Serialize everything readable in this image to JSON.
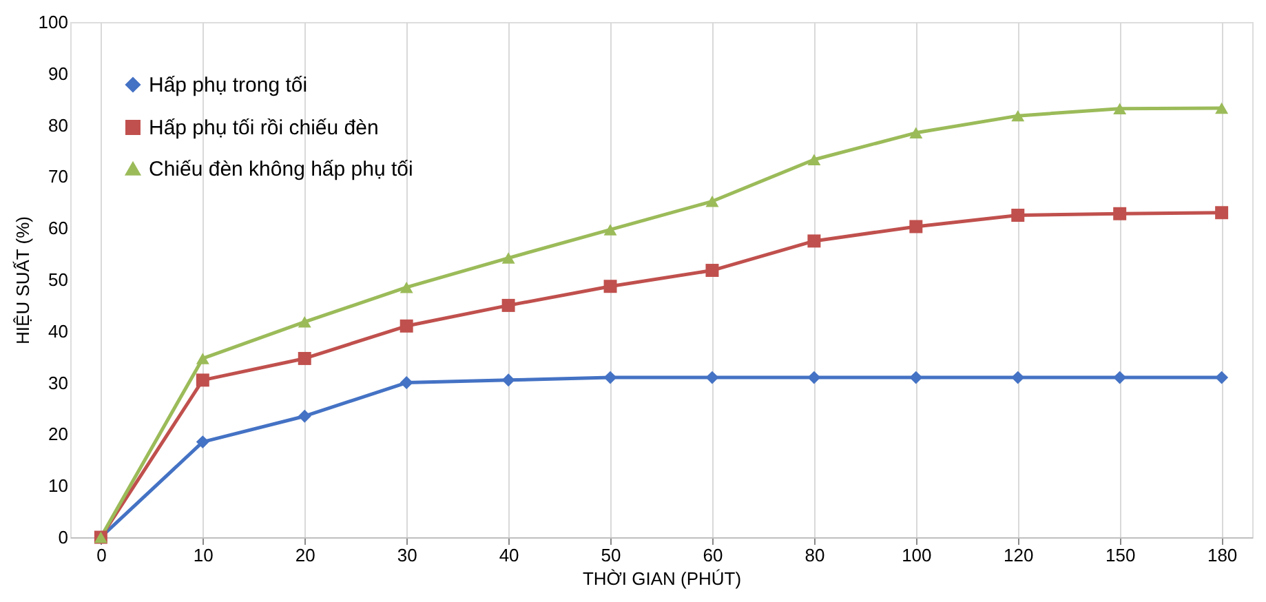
{
  "chart_data": {
    "type": "line",
    "xlabel": "THỜI GIAN (PHÚT)",
    "ylabel": "HIỆU SUẤT (%)",
    "categories": [
      "0",
      "10",
      "20",
      "30",
      "40",
      "50",
      "60",
      "80",
      "100",
      "120",
      "150",
      "180"
    ],
    "ylim": [
      0,
      100
    ],
    "yticks": [
      0,
      10,
      20,
      30,
      40,
      50,
      60,
      70,
      80,
      90,
      100
    ],
    "grid": "x",
    "legend": "top left",
    "line_style": "solid",
    "series": [
      {
        "name": "Hấp phụ trong tối",
        "color": "#4472c4",
        "marker": "diamond",
        "values": [
          0,
          18.5,
          23.5,
          30,
          30.5,
          31,
          31,
          31,
          31,
          31,
          31,
          31
        ]
      },
      {
        "name": "Hấp phụ tối rồi chiếu đèn",
        "color": "#c0504d",
        "marker": "square",
        "values": [
          0,
          30.5,
          34.7,
          41,
          45,
          48.7,
          51.8,
          57.5,
          60.3,
          62.5,
          62.8,
          63
        ]
      },
      {
        "name": "Chiếu đèn không hấp phụ tối",
        "color": "#9bbb59",
        "marker": "triangle",
        "values": [
          0,
          34.7,
          41.8,
          48.5,
          54.2,
          59.7,
          65.2,
          73.3,
          78.5,
          81.8,
          83.2,
          83.3
        ]
      }
    ]
  }
}
